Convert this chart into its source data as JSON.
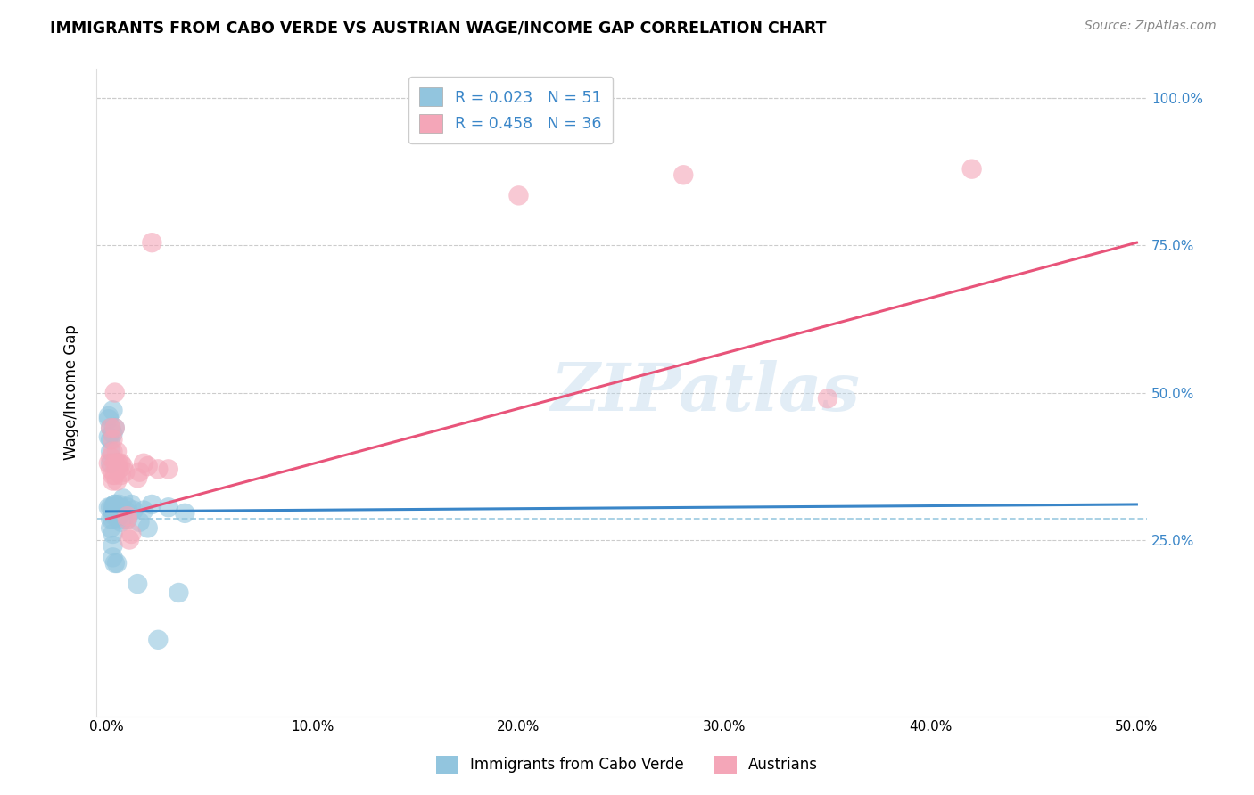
{
  "title": "IMMIGRANTS FROM CABO VERDE VS AUSTRIAN WAGE/INCOME GAP CORRELATION CHART",
  "source": "Source: ZipAtlas.com",
  "ylabel": "Wage/Income Gap",
  "xlim": [
    -0.005,
    0.505
  ],
  "ylim": [
    -0.05,
    1.05
  ],
  "xticks": [
    0.0,
    0.1,
    0.2,
    0.3,
    0.4,
    0.5
  ],
  "yticks": [
    0.25,
    0.5,
    0.75,
    1.0
  ],
  "xtick_labels": [
    "0.0%",
    "10.0%",
    "20.0%",
    "30.0%",
    "40.0%",
    "50.0%"
  ],
  "ytick_labels": [
    "25.0%",
    "50.0%",
    "75.0%",
    "100.0%"
  ],
  "legend_labels": [
    "Immigrants from Cabo Verde",
    "Austrians"
  ],
  "R_blue": 0.023,
  "N_blue": 51,
  "R_pink": 0.458,
  "N_pink": 36,
  "blue_color": "#92c5de",
  "pink_color": "#f4a6b8",
  "blue_line_color": "#3a86c8",
  "pink_line_color": "#e8547a",
  "watermark": "ZIPatlas",
  "background_color": "#ffffff",
  "blue_points_x": [
    0.001,
    0.001,
    0.001,
    0.001,
    0.002,
    0.002,
    0.002,
    0.002,
    0.002,
    0.002,
    0.002,
    0.003,
    0.003,
    0.003,
    0.003,
    0.003,
    0.003,
    0.003,
    0.003,
    0.004,
    0.004,
    0.004,
    0.004,
    0.004,
    0.004,
    0.005,
    0.005,
    0.005,
    0.005,
    0.006,
    0.006,
    0.006,
    0.006,
    0.007,
    0.007,
    0.008,
    0.008,
    0.009,
    0.01,
    0.01,
    0.012,
    0.013,
    0.015,
    0.016,
    0.018,
    0.02,
    0.022,
    0.025,
    0.03,
    0.035,
    0.038
  ],
  "blue_points_y": [
    0.305,
    0.455,
    0.46,
    0.425,
    0.44,
    0.42,
    0.4,
    0.38,
    0.305,
    0.285,
    0.27,
    0.3,
    0.26,
    0.24,
    0.22,
    0.47,
    0.43,
    0.305,
    0.285,
    0.31,
    0.29,
    0.44,
    0.3,
    0.21,
    0.31,
    0.3,
    0.29,
    0.21,
    0.305,
    0.29,
    0.3,
    0.31,
    0.29,
    0.28,
    0.305,
    0.32,
    0.285,
    0.3,
    0.285,
    0.305,
    0.31,
    0.3,
    0.175,
    0.28,
    0.3,
    0.27,
    0.31,
    0.08,
    0.305,
    0.16,
    0.295
  ],
  "pink_points_x": [
    0.001,
    0.002,
    0.002,
    0.002,
    0.003,
    0.003,
    0.003,
    0.003,
    0.004,
    0.004,
    0.004,
    0.004,
    0.005,
    0.005,
    0.005,
    0.006,
    0.006,
    0.007,
    0.007,
    0.008,
    0.009,
    0.01,
    0.01,
    0.011,
    0.012,
    0.015,
    0.016,
    0.018,
    0.02,
    0.022,
    0.025,
    0.03,
    0.2,
    0.28,
    0.35,
    0.42
  ],
  "pink_points_y": [
    0.38,
    0.44,
    0.39,
    0.37,
    0.36,
    0.4,
    0.35,
    0.42,
    0.44,
    0.38,
    0.5,
    0.36,
    0.38,
    0.4,
    0.35,
    0.37,
    0.38,
    0.36,
    0.38,
    0.375,
    0.365,
    0.285,
    0.29,
    0.25,
    0.26,
    0.355,
    0.365,
    0.38,
    0.375,
    0.755,
    0.37,
    0.37,
    0.835,
    0.87,
    0.49,
    0.88
  ],
  "blue_trend_x0": 0.0,
  "blue_trend_x1": 0.5,
  "blue_trend_y0": 0.298,
  "blue_trend_y1": 0.31,
  "pink_trend_x0": 0.0,
  "pink_trend_x1": 0.5,
  "pink_trend_y0": 0.285,
  "pink_trend_y1": 0.755,
  "dashed_line_y": 0.285,
  "dashed_line_color": "#92c5de"
}
